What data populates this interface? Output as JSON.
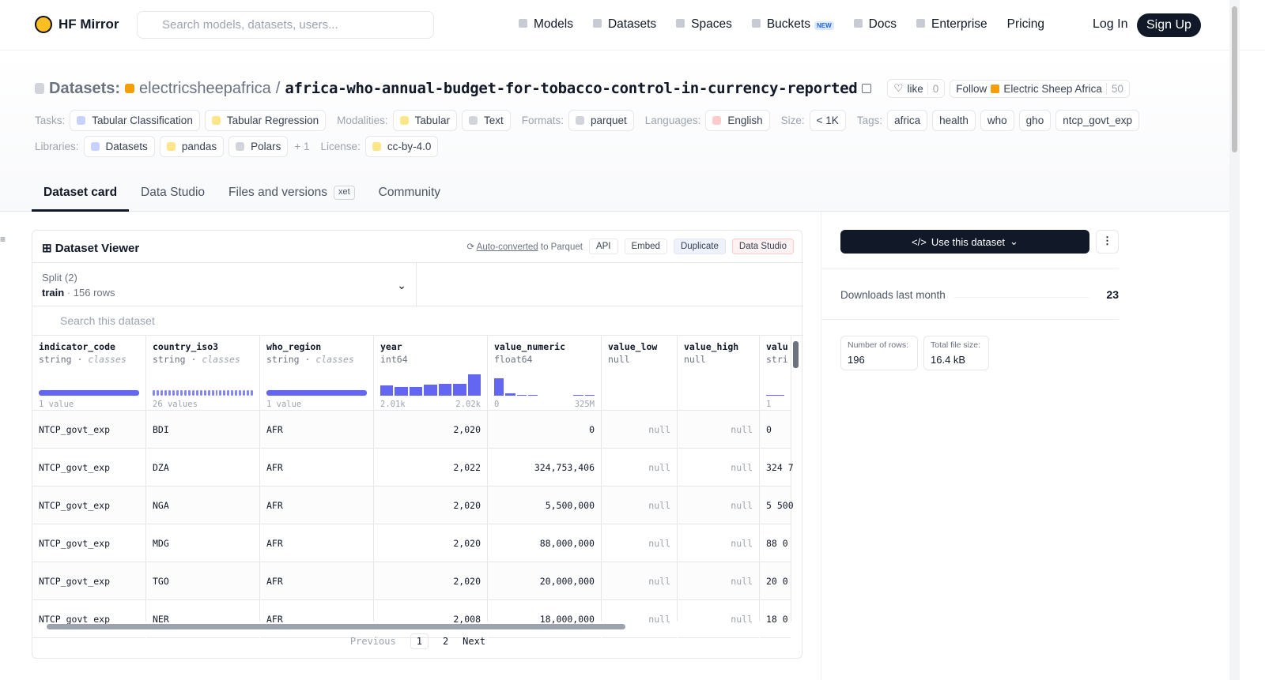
{
  "nav": {
    "brand": "HF Mirror",
    "search_placeholder": "Search models, datasets, users...",
    "links": [
      "Models",
      "Datasets",
      "Spaces",
      "Buckets",
      "Docs",
      "Enterprise",
      "Pricing"
    ],
    "new_badge": "NEW",
    "login": "Log In",
    "signup": "Sign Up"
  },
  "header": {
    "prefix": "Datasets:",
    "owner": "electricsheepafrica",
    "separator": "/",
    "name": "africa-who-annual-budget-for-tobacco-control-in-currency-reported",
    "like": "like",
    "like_count": "0",
    "follow": "Follow",
    "org": "Electric Sheep Africa",
    "followers": "50"
  },
  "tag_rows": [
    [
      {
        "label": "Tasks:",
        "items": [
          "Tabular Classification",
          "Tabular Regression"
        ]
      },
      {
        "label": "Modalities:",
        "items": [
          "Tabular",
          "Text"
        ]
      },
      {
        "label": "Formats:",
        "items": [
          "parquet"
        ]
      },
      {
        "label": "Languages:",
        "items": [
          "English"
        ]
      },
      {
        "label": "Size:",
        "items": [
          "< 1K"
        ]
      },
      {
        "label": "Tags:",
        "items": [
          "africa",
          "health",
          "who",
          "gho",
          "ntcp_govt_exp"
        ]
      }
    ],
    [
      {
        "label": "Libraries:",
        "items": [
          "Datasets",
          "pandas",
          "Polars"
        ],
        "more": "+ 1"
      },
      {
        "label": "License:",
        "items": [
          "cc-by-4.0"
        ]
      }
    ]
  ],
  "tabs": [
    "Dataset card",
    "Data Studio",
    "Files and versions",
    "Community"
  ],
  "xet_badge": "xet",
  "viewer": {
    "title": "Dataset Viewer",
    "auto_converted": "Auto-converted",
    "to_parquet": "to Parquet",
    "buttons": [
      "API",
      "Embed",
      "Duplicate",
      "Data Studio"
    ],
    "split_label": "Split (2)",
    "split": "train",
    "rows_label": "156 rows",
    "search_placeholder": "Search this dataset",
    "columns": [
      {
        "name": "indicator_code",
        "type": "string",
        "kind": "classes",
        "stats": [
          "1 value"
        ]
      },
      {
        "name": "country_iso3",
        "type": "string",
        "kind": "classes",
        "stats": [
          "26 values"
        ]
      },
      {
        "name": "who_region",
        "type": "string",
        "kind": "classes",
        "stats": [
          "1 value"
        ]
      },
      {
        "name": "year",
        "type": "int64",
        "stats": [
          "2.01k",
          "2.02k"
        ]
      },
      {
        "name": "value_numeric",
        "type": "float64",
        "stats": [
          "0",
          "325M"
        ]
      },
      {
        "name": "value_low",
        "type": "null",
        "stats": []
      },
      {
        "name": "value_high",
        "type": "null",
        "stats": []
      },
      {
        "name": "valu",
        "type": "stri",
        "stats": [
          "1"
        ]
      }
    ],
    "rows": [
      [
        "NTCP_govt_exp",
        "BDI",
        "AFR",
        "2,020",
        "0",
        "null",
        "null",
        "0"
      ],
      [
        "NTCP_govt_exp",
        "DZA",
        "AFR",
        "2,022",
        "324,753,406",
        "null",
        "null",
        "324 7"
      ],
      [
        "NTCP_govt_exp",
        "NGA",
        "AFR",
        "2,020",
        "5,500,000",
        "null",
        "null",
        "5 500"
      ],
      [
        "NTCP_govt_exp",
        "MDG",
        "AFR",
        "2,020",
        "88,000,000",
        "null",
        "null",
        "88 0"
      ],
      [
        "NTCP_govt_exp",
        "TGO",
        "AFR",
        "2,020",
        "20,000,000",
        "null",
        "null",
        "20 0"
      ],
      [
        "NTCP_govt_exp",
        "NER",
        "AFR",
        "2,008",
        "18,000,000",
        "null",
        "null",
        "18 0"
      ]
    ],
    "pagination": {
      "previous": "Previous",
      "pages": [
        "1",
        "2"
      ],
      "next": "Next"
    }
  },
  "sidebar": {
    "use_button": "Use this dataset",
    "downloads_label": "Downloads last month",
    "downloads": "23",
    "rows_label": "Number of rows:",
    "rows": "196",
    "size_label": "Total file size:",
    "size": "16.4 kB"
  }
}
